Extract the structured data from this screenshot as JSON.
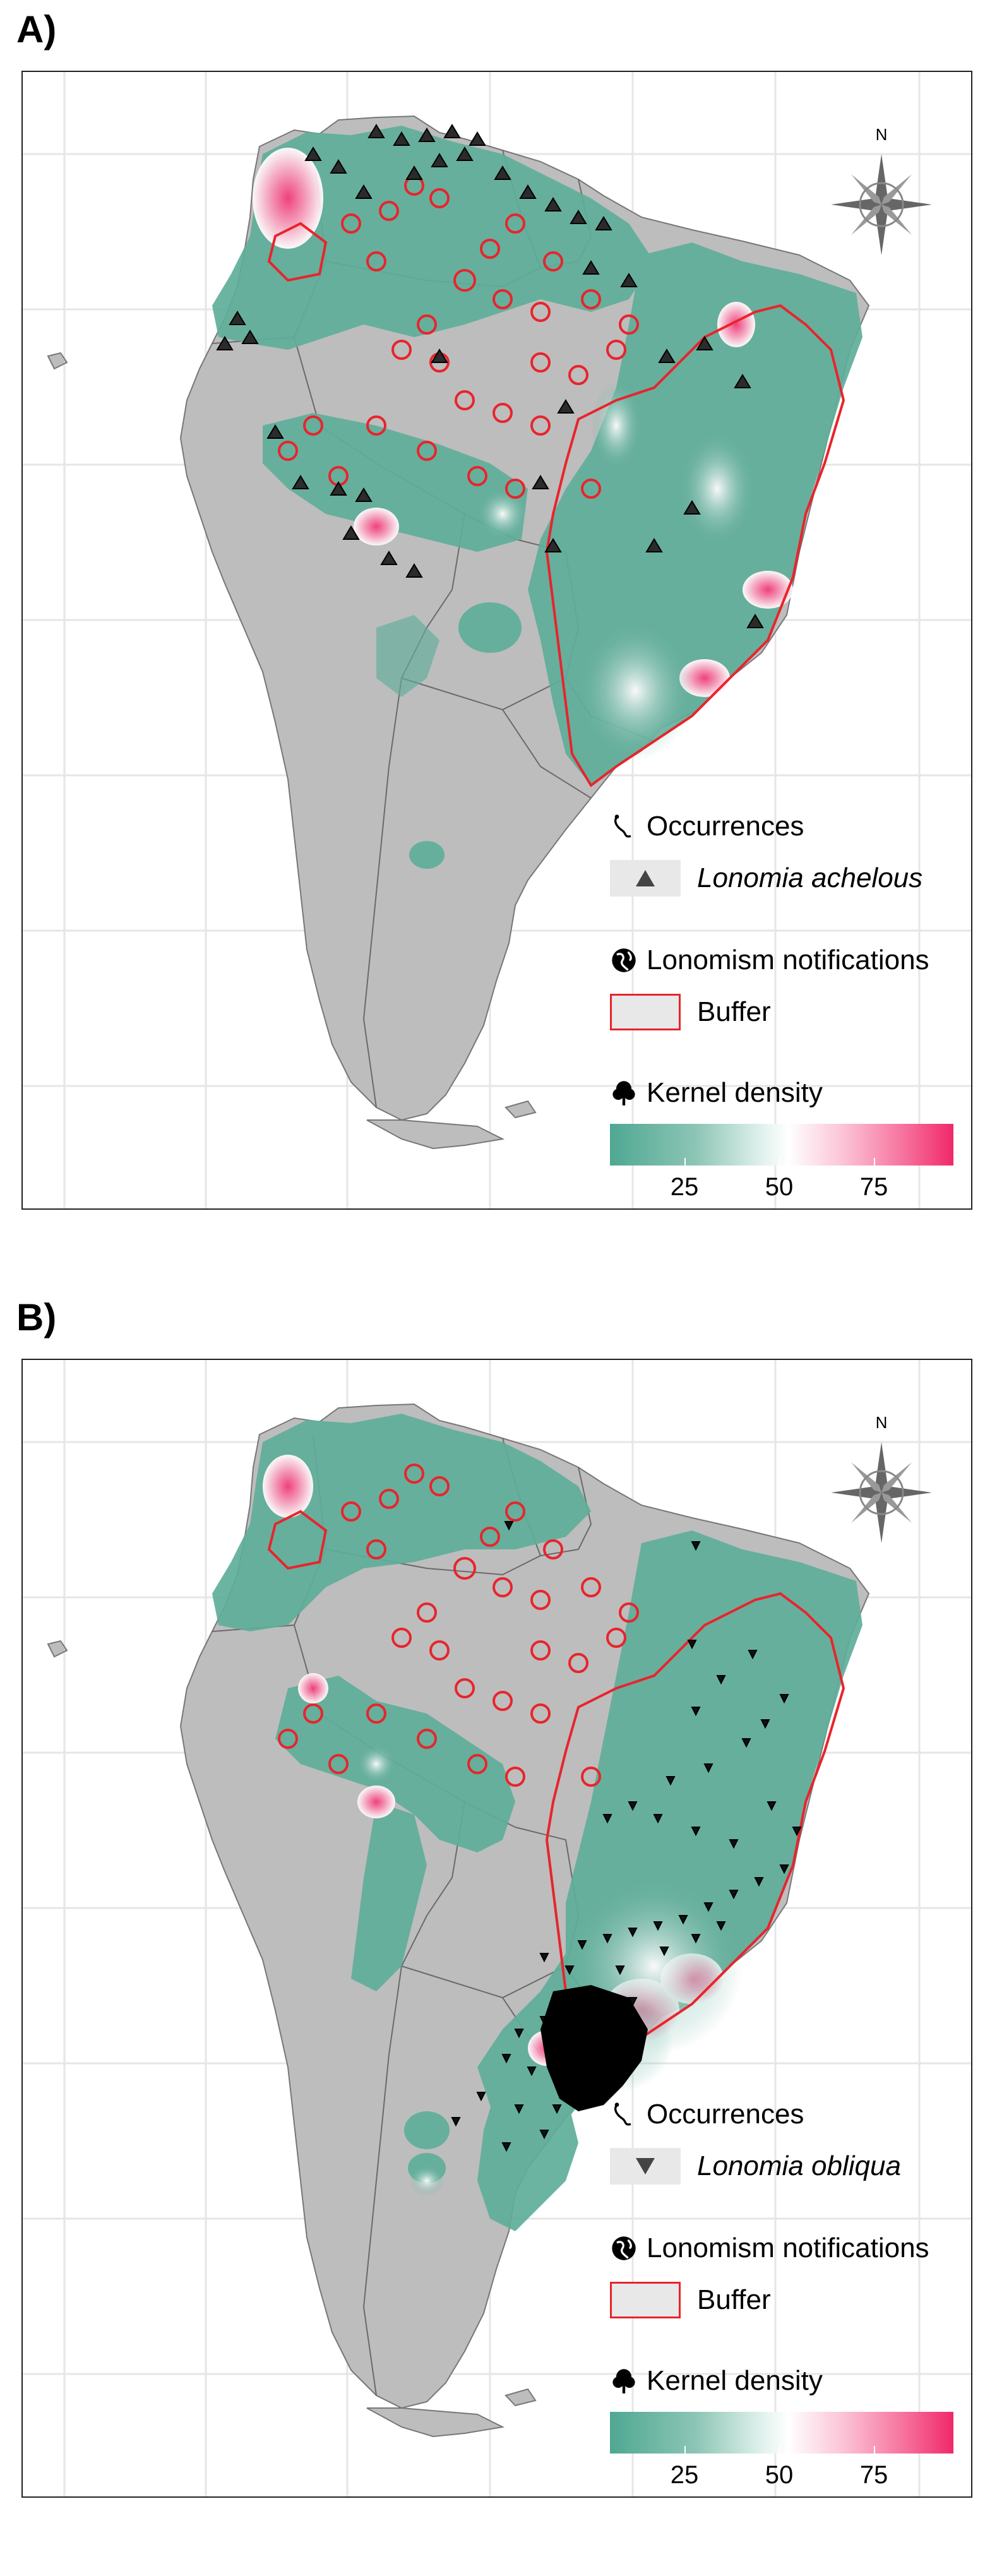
{
  "panels": [
    {
      "label": "A)",
      "north_label": "N",
      "legend": {
        "occurrences_title": "Occurrences",
        "species": "Lonomia achelous",
        "notifications_title": "Lonomism notifications",
        "buffer_label": "Buffer",
        "kernel_title": "Kernel density",
        "ticks": [
          "25",
          "50",
          "75"
        ]
      },
      "colors": {
        "land": "#bdbdbd",
        "buffer": "#e8242c",
        "marker": "#222222"
      }
    },
    {
      "label": "B)",
      "north_label": "N",
      "legend": {
        "occurrences_title": "Occurrences",
        "species": "Lonomia obliqua",
        "notifications_title": "Lonomism notifications",
        "buffer_label": "Buffer",
        "kernel_title": "Kernel density",
        "ticks": [
          "25",
          "50",
          "75"
        ]
      },
      "colors": {
        "land": "#bdbdbd",
        "buffer": "#e8242c",
        "marker": "#222222"
      }
    }
  ]
}
